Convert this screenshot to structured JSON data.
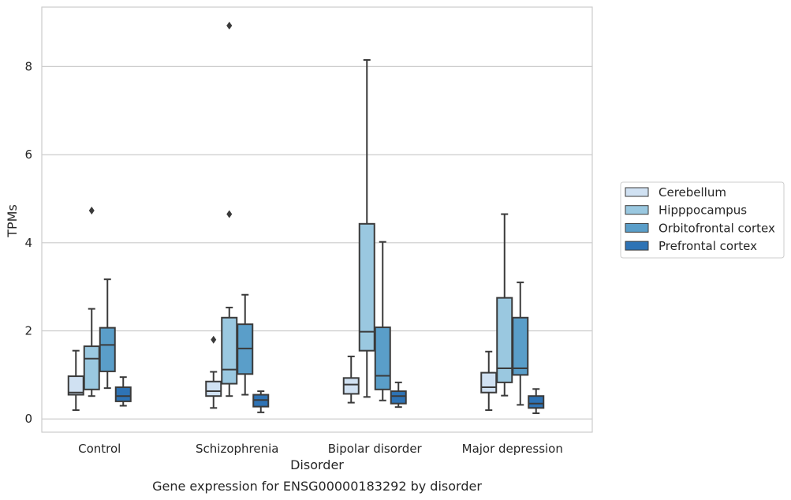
{
  "caption": "Gene expression for ENSG00000183292 by disorder",
  "chart_data": {
    "type": "box",
    "title": "",
    "xlabel": "Disorder",
    "ylabel": "TPMs",
    "ylim": [
      -0.3,
      9.35
    ],
    "yticks": [
      0,
      2,
      4,
      6,
      8
    ],
    "grid": "horizontal",
    "legend_position": "right",
    "categories": [
      "Control",
      "Schizophrenia",
      "Bipolar disorder",
      "Major depression"
    ],
    "series": [
      {
        "name": "Cerebellum",
        "color": "#d0e1f2",
        "boxes": [
          {
            "whislo": 0.2,
            "q1": 0.55,
            "med": 0.6,
            "q3": 0.97,
            "whishi": 1.55,
            "fliers": []
          },
          {
            "whislo": 0.25,
            "q1": 0.52,
            "med": 0.63,
            "q3": 0.85,
            "whishi": 1.07,
            "fliers": [
              1.8
            ]
          },
          {
            "whislo": 0.37,
            "q1": 0.57,
            "med": 0.78,
            "q3": 0.93,
            "whishi": 1.42,
            "fliers": []
          },
          {
            "whislo": 0.2,
            "q1": 0.6,
            "med": 0.72,
            "q3": 1.05,
            "whishi": 1.53,
            "fliers": []
          }
        ]
      },
      {
        "name": "Hipppocampus",
        "color": "#9ac8e0",
        "boxes": [
          {
            "whislo": 0.52,
            "q1": 0.67,
            "med": 1.37,
            "q3": 1.65,
            "whishi": 2.5,
            "fliers": [
              4.73
            ]
          },
          {
            "whislo": 0.52,
            "q1": 0.8,
            "med": 1.12,
            "q3": 2.3,
            "whishi": 2.53,
            "fliers": [
              4.65,
              8.93
            ]
          },
          {
            "whislo": 0.5,
            "q1": 1.55,
            "med": 1.98,
            "q3": 4.43,
            "whishi": 8.15,
            "fliers": []
          },
          {
            "whislo": 0.53,
            "q1": 0.83,
            "med": 1.15,
            "q3": 2.75,
            "whishi": 4.65,
            "fliers": []
          }
        ]
      },
      {
        "name": "Orbitofrontal cortex",
        "color": "#5a9ec9",
        "boxes": [
          {
            "whislo": 0.7,
            "q1": 1.08,
            "med": 1.68,
            "q3": 2.07,
            "whishi": 3.17,
            "fliers": []
          },
          {
            "whislo": 0.55,
            "q1": 1.02,
            "med": 1.6,
            "q3": 2.15,
            "whishi": 2.82,
            "fliers": []
          },
          {
            "whislo": 0.42,
            "q1": 0.67,
            "med": 0.98,
            "q3": 2.08,
            "whishi": 4.02,
            "fliers": []
          },
          {
            "whislo": 0.32,
            "q1": 1.0,
            "med": 1.15,
            "q3": 2.3,
            "whishi": 3.1,
            "fliers": []
          }
        ]
      },
      {
        "name": "Prefrontal cortex",
        "color": "#2e73b5",
        "boxes": [
          {
            "whislo": 0.3,
            "q1": 0.4,
            "med": 0.52,
            "q3": 0.72,
            "whishi": 0.95,
            "fliers": []
          },
          {
            "whislo": 0.15,
            "q1": 0.28,
            "med": 0.43,
            "q3": 0.55,
            "whishi": 0.63,
            "fliers": []
          },
          {
            "whislo": 0.27,
            "q1": 0.35,
            "med": 0.52,
            "q3": 0.63,
            "whishi": 0.83,
            "fliers": []
          },
          {
            "whislo": 0.13,
            "q1": 0.25,
            "med": 0.35,
            "q3": 0.52,
            "whishi": 0.68,
            "fliers": []
          }
        ]
      }
    ]
  },
  "style": {
    "grid_color": "#cccccc",
    "frame_color": "#cccccc",
    "line_color": "#3a3a3a",
    "legend_edge": "#cccccc"
  }
}
